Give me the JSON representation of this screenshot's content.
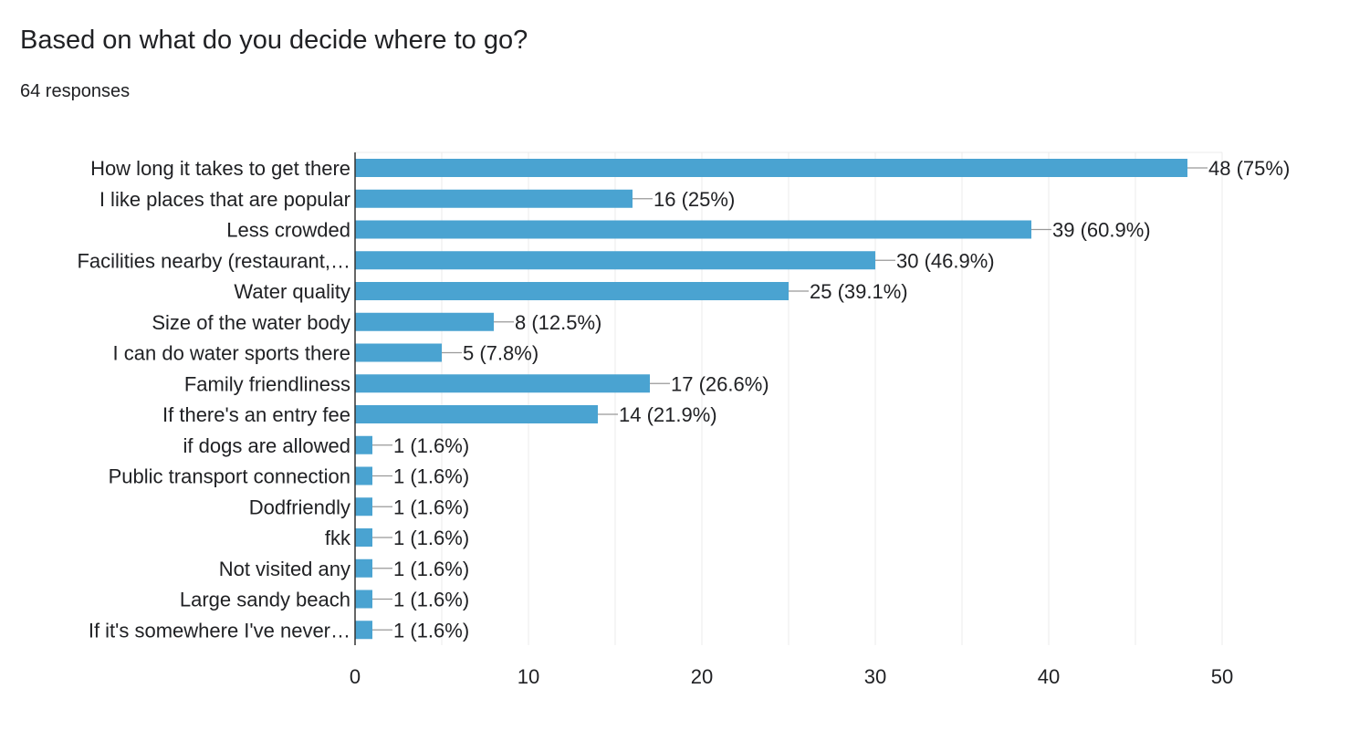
{
  "header": {
    "question": "Based on what do you decide where to go?",
    "responses": "64 responses"
  },
  "colors": {
    "bar": "#4aa3d1",
    "grid": "#ebebeb",
    "axis": "#333333",
    "connector": "#999999",
    "text": "#202124"
  },
  "chart_data": {
    "type": "bar",
    "orientation": "horizontal",
    "categories": [
      "How long it takes to get there",
      "I like places that are popular",
      "Less crowded",
      "Facilities nearby (restaurant,…",
      "Water quality",
      "Size of the water body",
      "I can do water sports there",
      "Family friendliness",
      "If there's an entry fee",
      "if dogs are allowed",
      "Public transport connection",
      "Dodfriendly",
      "fkk",
      "Not visited any",
      "Large sandy beach",
      "If it's somewhere I've never…"
    ],
    "values": [
      48,
      16,
      39,
      30,
      25,
      8,
      5,
      17,
      14,
      1,
      1,
      1,
      1,
      1,
      1,
      1
    ],
    "data_labels": [
      "48 (75%)",
      "16 (25%)",
      "39 (60.9%)",
      "30 (46.9%)",
      "25 (39.1%)",
      "8 (12.5%)",
      "5 (7.8%)",
      "17 (26.6%)",
      "14 (21.9%)",
      "1 (1.6%)",
      "1 (1.6%)",
      "1 (1.6%)",
      "1 (1.6%)",
      "1 (1.6%)",
      "1 (1.6%)",
      "1 (1.6%)"
    ],
    "xlim": [
      0,
      50
    ],
    "xticks": [
      0,
      10,
      20,
      30,
      40,
      50
    ],
    "minor_grid_step": 5,
    "grid": true,
    "legend": "none"
  }
}
